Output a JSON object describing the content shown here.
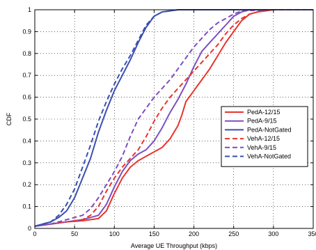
{
  "chart_data": {
    "type": "line",
    "title": "",
    "xlabel": "Average UE Throughput (kbps)",
    "ylabel": "CDF",
    "xlim": [
      0,
      350
    ],
    "ylim": [
      0,
      1
    ],
    "xticks": [
      0,
      50,
      100,
      150,
      200,
      250,
      300,
      350
    ],
    "xtick_labels": [
      "0",
      "50",
      "100",
      "150",
      "200",
      "250",
      "300",
      "350"
    ],
    "yticks": [
      0,
      0.1,
      0.2,
      0.3,
      0.4,
      0.5,
      0.6,
      0.7,
      0.8,
      0.9,
      1
    ],
    "ytick_labels": [
      "0",
      "0.1",
      "0.2",
      "0.3",
      "0.4",
      "0.5",
      "0.6",
      "0.7",
      "0.8",
      "0.9",
      "1"
    ],
    "grid": true,
    "grid_style": "dotted",
    "legend_position": "right, middle",
    "series": [
      {
        "name": "PedA-12/15",
        "color": "#e8342b",
        "dash": "solid",
        "x": [
          0,
          20,
          40,
          60,
          80,
          90,
          100,
          110,
          120,
          130,
          140,
          150,
          160,
          170,
          180,
          185,
          190,
          200,
          210,
          220,
          230,
          240,
          250,
          260,
          270,
          280,
          300,
          350
        ],
        "y": [
          0.01,
          0.02,
          0.03,
          0.035,
          0.045,
          0.08,
          0.16,
          0.23,
          0.28,
          0.31,
          0.33,
          0.35,
          0.37,
          0.41,
          0.47,
          0.52,
          0.58,
          0.63,
          0.68,
          0.73,
          0.79,
          0.85,
          0.9,
          0.95,
          0.98,
          0.99,
          1.0,
          1.0
        ]
      },
      {
        "name": "PedA-9/15",
        "color": "#7b4fc0",
        "dash": "solid",
        "x": [
          0,
          20,
          40,
          60,
          80,
          90,
          100,
          110,
          120,
          130,
          140,
          150,
          160,
          170,
          180,
          190,
          200,
          210,
          220,
          230,
          240,
          250,
          260,
          270,
          300,
          350
        ],
        "y": [
          0.01,
          0.02,
          0.03,
          0.04,
          0.06,
          0.11,
          0.19,
          0.26,
          0.31,
          0.34,
          0.36,
          0.4,
          0.46,
          0.53,
          0.59,
          0.66,
          0.74,
          0.81,
          0.85,
          0.89,
          0.93,
          0.97,
          0.99,
          1.0,
          1.0,
          1.0
        ]
      },
      {
        "name": "PedA-NotGated",
        "color": "#3a4fb0",
        "dash": "solid",
        "x": [
          0,
          20,
          30,
          40,
          50,
          60,
          70,
          80,
          90,
          100,
          110,
          120,
          130,
          140,
          150,
          160,
          170,
          180,
          200,
          250,
          350
        ],
        "y": [
          0.01,
          0.03,
          0.05,
          0.08,
          0.14,
          0.23,
          0.32,
          0.44,
          0.54,
          0.63,
          0.7,
          0.77,
          0.85,
          0.92,
          0.97,
          0.99,
          0.995,
          1.0,
          1.0,
          1.0,
          1.0
        ]
      },
      {
        "name": "VehA-12/15",
        "color": "#e8342b",
        "dash": "dashed",
        "x": [
          0,
          20,
          40,
          60,
          70,
          80,
          90,
          100,
          110,
          120,
          130,
          140,
          150,
          160,
          170,
          180,
          190,
          200,
          210,
          220,
          230,
          240,
          250,
          260,
          270,
          280,
          300,
          350
        ],
        "y": [
          0.01,
          0.02,
          0.03,
          0.04,
          0.06,
          0.1,
          0.17,
          0.23,
          0.28,
          0.32,
          0.36,
          0.42,
          0.49,
          0.55,
          0.6,
          0.64,
          0.68,
          0.72,
          0.76,
          0.8,
          0.84,
          0.89,
          0.93,
          0.96,
          0.98,
          0.99,
          1.0,
          1.0
        ]
      },
      {
        "name": "VehA-9/15",
        "color": "#7b4fc0",
        "dash": "dashed",
        "x": [
          0,
          20,
          40,
          60,
          70,
          80,
          90,
          100,
          110,
          120,
          130,
          140,
          150,
          160,
          170,
          180,
          190,
          200,
          210,
          220,
          230,
          240,
          250,
          260,
          300,
          350
        ],
        "y": [
          0.01,
          0.02,
          0.04,
          0.06,
          0.09,
          0.14,
          0.2,
          0.26,
          0.33,
          0.42,
          0.5,
          0.55,
          0.6,
          0.64,
          0.68,
          0.73,
          0.78,
          0.83,
          0.87,
          0.91,
          0.94,
          0.96,
          0.98,
          0.995,
          1.0,
          1.0
        ]
      },
      {
        "name": "VehA-NotGated",
        "color": "#3a4fb0",
        "dash": "dashed",
        "x": [
          0,
          20,
          30,
          40,
          50,
          60,
          70,
          80,
          90,
          100,
          110,
          120,
          130,
          140,
          150,
          160,
          170,
          180,
          200,
          250,
          350
        ],
        "y": [
          0.01,
          0.03,
          0.06,
          0.11,
          0.18,
          0.28,
          0.38,
          0.49,
          0.58,
          0.66,
          0.73,
          0.79,
          0.86,
          0.93,
          0.97,
          0.99,
          0.995,
          1.0,
          1.0,
          1.0,
          1.0
        ]
      }
    ]
  }
}
